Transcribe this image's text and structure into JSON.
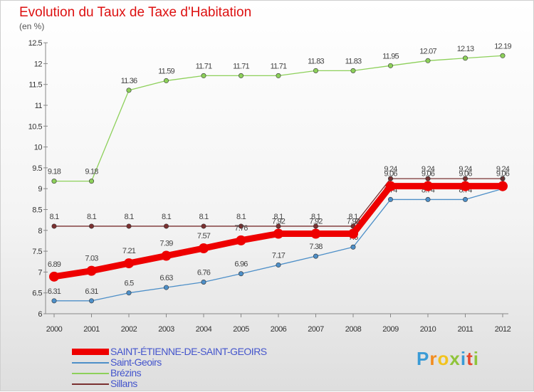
{
  "header": {
    "title": "Evolution du Taux de Taxe d'Habitation",
    "unit": "(en %)"
  },
  "logo": {
    "letters": [
      "P",
      "r",
      "o",
      "x",
      "i",
      "t",
      "i"
    ],
    "colors": [
      "#3a9bd6",
      "#f28c1f",
      "#f2c31f",
      "#8fc43a",
      "#3a9bd6",
      "#e8482c",
      "#8fc43a"
    ]
  },
  "chart_data": {
    "type": "line",
    "x": [
      2000,
      2001,
      2002,
      2003,
      2004,
      2005,
      2006,
      2007,
      2008,
      2009,
      2010,
      2011,
      2012
    ],
    "ylim": [
      6,
      12.5
    ],
    "yticks": [
      "6",
      "6.5",
      "7",
      "7.5",
      "8",
      "8.5",
      "9",
      "9.5",
      "10",
      "10.5",
      "11",
      "11.5",
      "12",
      "12.5"
    ],
    "grid": false,
    "legend_position": "bottom",
    "series": [
      {
        "name": "Brézins",
        "color": "#8dd05a",
        "values": [
          9.18,
          9.18,
          11.36,
          11.59,
          11.71,
          11.71,
          11.71,
          11.83,
          11.83,
          11.95,
          12.07,
          12.13,
          12.19
        ],
        "labels": [
          "9.18",
          "9.18",
          "11.36",
          "11.59",
          "11.71",
          "11.71",
          "11.71",
          "11.83",
          "11.83",
          "11.95",
          "12.07",
          "12.13",
          "12.19"
        ]
      },
      {
        "name": "Sillans",
        "color": "#7a3030",
        "values": [
          8.1,
          8.1,
          8.1,
          8.1,
          8.1,
          8.1,
          8.1,
          8.1,
          8.1,
          9.24,
          9.24,
          9.24,
          9.24
        ],
        "labels": [
          "8.1",
          "8.1",
          "8.1",
          "8.1",
          "8.1",
          "8.1",
          "8.1",
          "8.1",
          "8.1",
          "9.24",
          "9.24",
          "9.24",
          "9.24"
        ]
      },
      {
        "name": "Saint-Geoirs",
        "color": "#4d8fc8",
        "values": [
          6.31,
          6.31,
          6.5,
          6.63,
          6.76,
          6.96,
          7.17,
          7.38,
          7.6,
          8.74,
          8.74,
          8.74,
          9.0
        ],
        "labels": [
          "6.31",
          "6.31",
          "6.5",
          "6.63",
          "6.76",
          "6.96",
          "7.17",
          "7.38",
          "7.6",
          "8.74",
          "8.74",
          "8.74",
          "9"
        ]
      },
      {
        "name": "SAINT-ÉTIENNE-DE-SAINT-GEOIRS",
        "color": "#ee0000",
        "values": [
          6.89,
          7.03,
          7.21,
          7.39,
          7.57,
          7.76,
          7.92,
          7.92,
          7.92,
          9.06,
          9.06,
          9.06,
          9.06
        ],
        "labels": [
          "6.89",
          "7.03",
          "7.21",
          "7.39",
          "7.57",
          "7.76",
          "7.92",
          "7.92",
          "7.92",
          "9.06",
          "9.06",
          "9.06",
          "9.06"
        ]
      }
    ],
    "legend": [
      {
        "name": "SAINT-ÉTIENNE-DE-SAINT-GEOIRS",
        "color": "#ee0000",
        "thick": true
      },
      {
        "name": "Saint-Geoirs",
        "color": "#4d8fc8",
        "thick": false
      },
      {
        "name": "Brézins",
        "color": "#8dd05a",
        "thick": false
      },
      {
        "name": "Sillans",
        "color": "#7a3030",
        "thick": false
      }
    ]
  }
}
